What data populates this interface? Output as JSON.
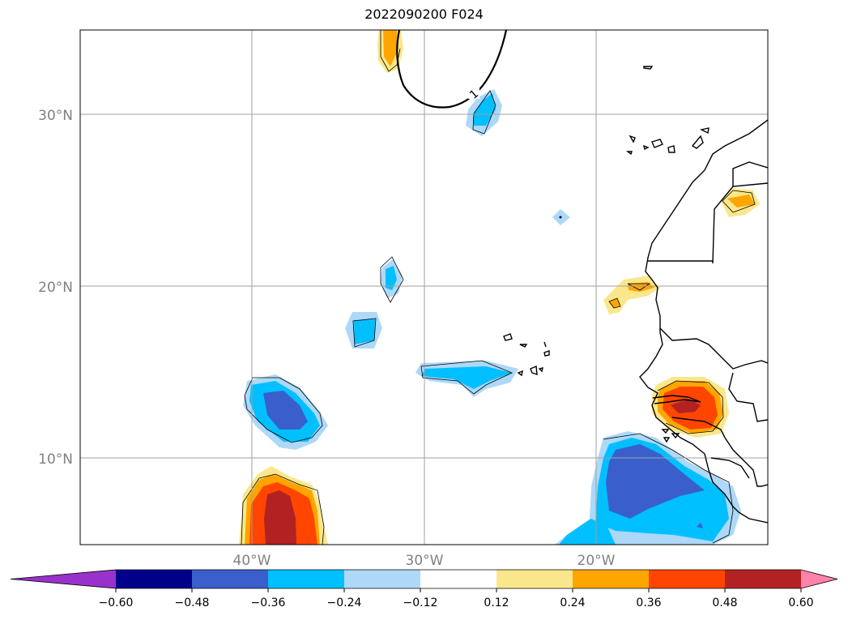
{
  "title": "2022090200 F024",
  "map": {
    "projection": "PlateCarree",
    "lon_range": [
      -50,
      -10
    ],
    "lat_range": [
      5,
      35
    ],
    "lat_ticks": [
      "30°N",
      "20°N",
      "10°N"
    ],
    "lon_ticks": [
      "40°W",
      "30°W",
      "20°W"
    ],
    "gridlines": true,
    "contour_line_label": "1"
  },
  "colorbar": {
    "orientation": "horizontal",
    "extend": "both",
    "levels": [
      "−0.60",
      "−0.48",
      "−0.36",
      "−0.24",
      "−0.12",
      "0.12",
      "0.24",
      "0.36",
      "0.48",
      "0.60"
    ],
    "colors": [
      "#9932cc",
      "#00008b",
      "#3a5fcd",
      "#00bfff",
      "#add8f8",
      "#ffffff",
      "#fbe78b",
      "#ffa500",
      "#ff4500",
      "#b22222",
      "#ff82ab"
    ]
  }
}
